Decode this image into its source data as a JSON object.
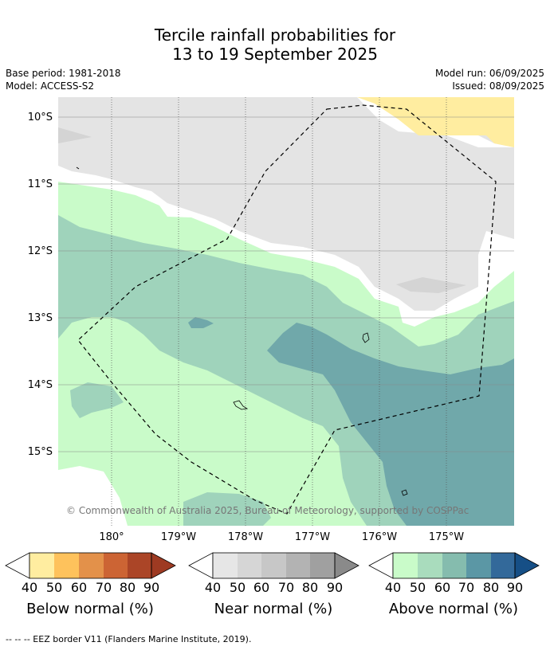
{
  "title_line1": "Tercile rainfall probabilities for",
  "title_line2": "13 to 19 September 2025",
  "base_period": "Base period: 1981-2018",
  "model": "Model: ACCESS-S2",
  "model_run": "Model run: 06/09/2025",
  "issued": "Issued: 08/09/2025",
  "lat_labels": [
    "10°S",
    "11°S",
    "12°S",
    "13°S",
    "14°S",
    "15°S"
  ],
  "lon_labels": [
    "180°",
    "179°W",
    "178°W",
    "177°W",
    "176°W",
    "175°W"
  ],
  "copyright": "© Commonwealth of Australia 2025, Bureau of Meteorology, supported by COSPPac",
  "colorbars": [
    {
      "title": "Below normal (%)",
      "ticks": [
        "40",
        "50",
        "60",
        "70",
        "80",
        "90"
      ],
      "colors": [
        "#ffeda0",
        "#fec25c",
        "#e3914a",
        "#cc6434",
        "#ab4527",
        "#9e3a22"
      ]
    },
    {
      "title": "Near normal (%)",
      "ticks": [
        "40",
        "50",
        "60",
        "70",
        "80",
        "90"
      ],
      "colors": [
        "#e6e6e6",
        "#d6d6d6",
        "#c7c7c7",
        "#b3b3b3",
        "#a0a0a0",
        "#8a8a8a"
      ]
    },
    {
      "title": "Above normal (%)",
      "ticks": [
        "40",
        "50",
        "60",
        "70",
        "80",
        "90"
      ],
      "colors": [
        "#c9fbc9",
        "#a9dcbd",
        "#85bcae",
        "#5b97a5",
        "#33699a",
        "#164f86"
      ]
    }
  ],
  "footer": "--  --  -- EEZ border V11 (Flanders Marine Institute, 2019).",
  "colors": {
    "near_normal_40": "#e4e4e4",
    "near_normal_50": "#d4d4d4",
    "below_normal_40": "#ffeda0",
    "above_normal_40": "#c9fbc9",
    "above_normal_50": "#9fd3bb",
    "above_normal_60": "#70a8aa"
  }
}
